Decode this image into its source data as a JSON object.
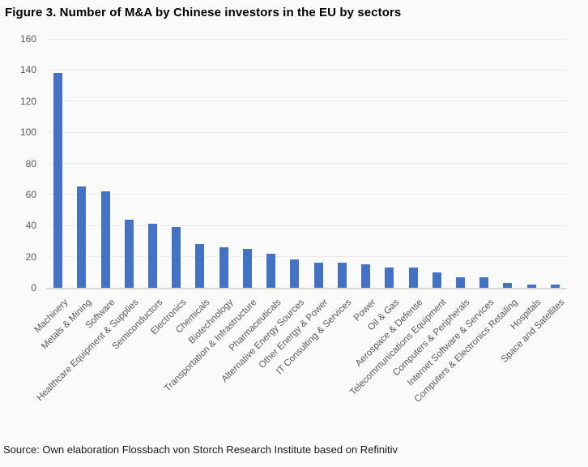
{
  "title": "Figure 3. Number of M&A by Chinese investors in the EU by sectors",
  "source": "Source: Own elaboration Flossbach von Storch Research Institute based on Refinitiv",
  "colors": {
    "bar": "#4472C4",
    "gridline": "#ECECEC",
    "axis_line": "#D9D9D9",
    "tick_label": "#595959",
    "title_text": "#000000",
    "background": "#FAFAFA"
  },
  "chart_data": {
    "type": "bar",
    "title": "Figure 3. Number of M&A by Chinese investors in the EU by sectors",
    "categories": [
      "Machinery",
      "Metals & Mining",
      "Software",
      "Healthcare Equipment & Supplies",
      "Semiconductors",
      "Electronics",
      "Chemicals",
      "Biotechnology",
      "Transportation & Infrastructure",
      "Pharmaceuticals",
      "Alternative Energy Sources",
      "Other Energy & Power",
      "IT Consulting & Services",
      "Power",
      "Oil & Gas",
      "Aerospace & Defense",
      "Telecommunications Equipment",
      "Computers & Peripherals",
      "Internet Software & Services",
      "Computers & Electronics Retailing",
      "Hospitals",
      "Space and Satellites"
    ],
    "values": [
      138,
      65,
      62,
      44,
      41,
      39,
      28,
      26,
      25,
      22,
      18,
      16,
      16,
      15,
      13,
      13,
      10,
      7,
      7,
      3,
      2,
      2
    ],
    "xlabel": "",
    "ylabel": "",
    "ylim": [
      0,
      160
    ],
    "ytick_interval": 20,
    "ytick_labels": [
      "0",
      "20",
      "40",
      "60",
      "80",
      "100",
      "120",
      "140",
      "160"
    ],
    "grid": "horizontal",
    "legend": "none",
    "bar_orientation": "vertical",
    "category_label_rotation_deg": -45
  }
}
